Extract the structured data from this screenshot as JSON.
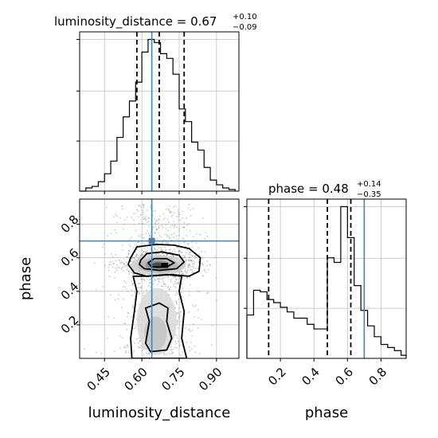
{
  "chart_data": [
    {
      "type": "histogram",
      "panel": "luminosity_distance marginal",
      "title": {
        "param": "luminosity_distance",
        "value": "0.67",
        "upper": "+0.10",
        "lower": "−0.09"
      },
      "xlim": [
        0.35,
        0.99
      ],
      "bin_edges": [
        0.35,
        0.375,
        0.4,
        0.425,
        0.45,
        0.475,
        0.5,
        0.525,
        0.55,
        0.575,
        0.6,
        0.625,
        0.65,
        0.675,
        0.7,
        0.725,
        0.75,
        0.775,
        0.8,
        0.825,
        0.85,
        0.875,
        0.9,
        0.925,
        0.95,
        0.975
      ],
      "counts": [
        0.0,
        0.02,
        0.03,
        0.06,
        0.11,
        0.19,
        0.34,
        0.47,
        0.57,
        0.69,
        0.88,
        0.96,
        0.94,
        0.87,
        0.84,
        0.74,
        0.52,
        0.44,
        0.31,
        0.26,
        0.15,
        0.07,
        0.04,
        0.02,
        0.01
      ],
      "quantile_lines": [
        0.58,
        0.67,
        0.77
      ],
      "truth": 0.64
    },
    {
      "type": "scatter",
      "panel": "luminosity_distance vs phase joint",
      "xlim": [
        0.35,
        0.99
      ],
      "ylim": [
        0.0,
        0.95
      ],
      "xlabel": "luminosity_distance",
      "ylabel": "phase",
      "xticks": [
        "0.45",
        "0.60",
        "0.75",
        "0.90"
      ],
      "xtick_values": [
        0.45,
        0.6,
        0.75,
        0.9
      ],
      "yticks": [
        "0.2",
        "0.4",
        "0.6",
        "0.8"
      ],
      "ytick_values": [
        0.2,
        0.4,
        0.6,
        0.8
      ],
      "truth": [
        0.64,
        0.7
      ]
    },
    {
      "type": "histogram",
      "panel": "phase marginal",
      "title": {
        "param": "phase",
        "value": "0.48",
        "upper": "+0.14",
        "lower": "−0.35"
      },
      "xlim": [
        0.0,
        0.95
      ],
      "xlabel": "phase",
      "xticks": [
        "0.2",
        "0.4",
        "0.6",
        "0.8"
      ],
      "xtick_values": [
        0.2,
        0.4,
        0.6,
        0.8
      ],
      "bin_edges": [
        0.0,
        0.04,
        0.08,
        0.12,
        0.16,
        0.2,
        0.24,
        0.28,
        0.32,
        0.36,
        0.4,
        0.44,
        0.48,
        0.52,
        0.56,
        0.6,
        0.64,
        0.68,
        0.72,
        0.76,
        0.8,
        0.84,
        0.88,
        0.92,
        0.95
      ],
      "counts": [
        0.28,
        0.44,
        0.43,
        0.38,
        0.36,
        0.33,
        0.3,
        0.26,
        0.26,
        0.22,
        0.19,
        0.19,
        0.65,
        0.62,
        0.98,
        0.78,
        0.47,
        0.31,
        0.21,
        0.14,
        0.09,
        0.07,
        0.05,
        0.02
      ],
      "quantile_lines": [
        0.13,
        0.48,
        0.62
      ],
      "truth": 0.7
    }
  ],
  "colors": {
    "truth": "#4682b4",
    "hist": "#000000",
    "grid": "#c0c0c0",
    "points": "#8a8a8a"
  }
}
